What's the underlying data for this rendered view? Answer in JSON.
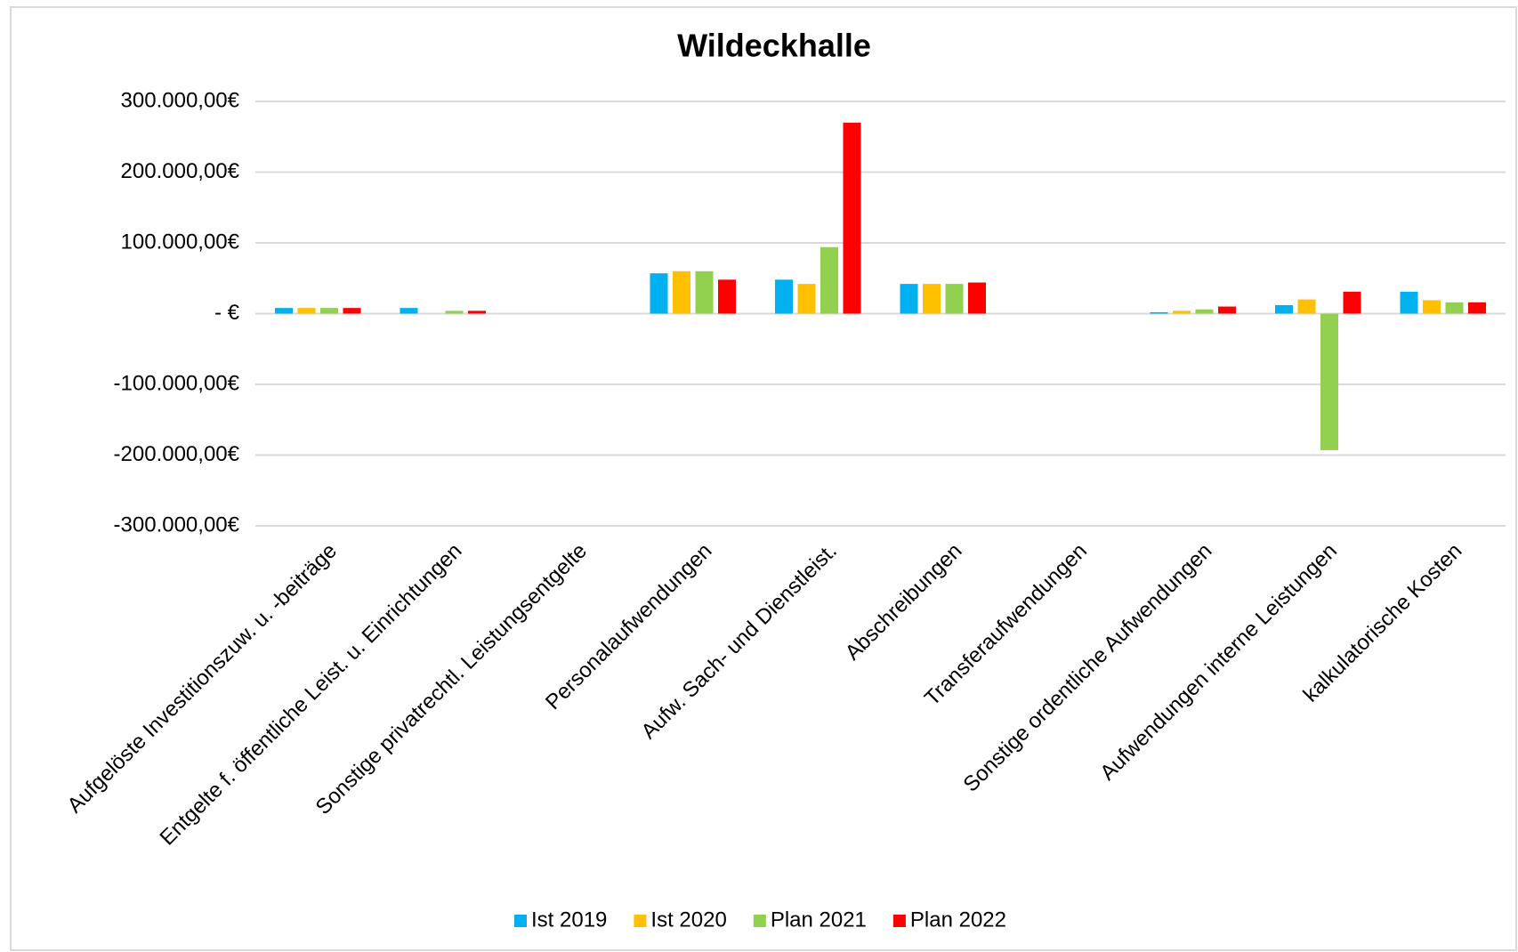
{
  "chart_data": {
    "type": "bar",
    "title": "Wildeckhalle",
    "categories": [
      "Aufgelöste Investitionszuw. u. -beiträge",
      "Entgelte f. öffentliche Leist. u. Einrichtungen",
      "Sonstige privatrechtl. Leistungsentgelte",
      "Personalaufwendungen",
      "Aufw. Sach- und Dienstleist.",
      "Abschreibungen",
      "Transferaufwendungen",
      "Sonstige ordentliche Aufwendungen",
      "Aufwendungen interne Leistungen",
      "kalkulatorische Kosten"
    ],
    "series": [
      {
        "name": "Ist 2019",
        "color": "#00b0f0",
        "values": [
          8000,
          8000,
          0,
          57000,
          48000,
          42000,
          0,
          2000,
          12000,
          31000
        ]
      },
      {
        "name": "Ist 2020",
        "color": "#ffc000",
        "values": [
          8000,
          0,
          0,
          60000,
          42000,
          42000,
          0,
          4000,
          20000,
          19000
        ]
      },
      {
        "name": "Plan 2021",
        "color": "#92d050",
        "values": [
          8000,
          4000,
          0,
          60000,
          94000,
          42000,
          0,
          6000,
          -193000,
          16000
        ]
      },
      {
        "name": "Plan 2022",
        "color": "#ff0000",
        "values": [
          8000,
          4000,
          0,
          48000,
          270000,
          44000,
          0,
          10000,
          31000,
          16000
        ]
      }
    ],
    "ylim": [
      -300000,
      300000
    ],
    "yticks": [
      {
        "value": -300000,
        "label": "-300.000,00€"
      },
      {
        "value": -200000,
        "label": "-200.000,00€"
      },
      {
        "value": -100000,
        "label": "-100.000,00€"
      },
      {
        "value": 0,
        "label": "-  €"
      },
      {
        "value": 100000,
        "label": "100.000,00€"
      },
      {
        "value": 200000,
        "label": "200.000,00€"
      },
      {
        "value": 300000,
        "label": "300.000,00€"
      }
    ],
    "grid": true,
    "legend": "bottom"
  }
}
